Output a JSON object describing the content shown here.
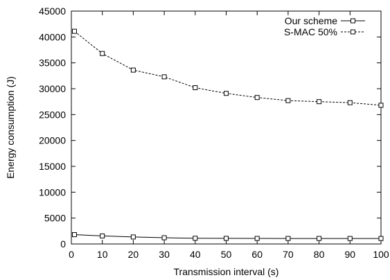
{
  "chart_data": {
    "type": "line",
    "xlabel": "Transmission interval (s)",
    "ylabel": "Energy consumption (J)",
    "xlim": [
      0,
      100
    ],
    "ylim": [
      0,
      45000
    ],
    "x_ticks": [
      "0",
      "10",
      "20",
      "30",
      "40",
      "50",
      "60",
      "70",
      "80",
      "90",
      "100"
    ],
    "y_ticks": [
      "0",
      "5000",
      "10000",
      "15000",
      "20000",
      "25000",
      "30000",
      "35000",
      "40000",
      "45000"
    ],
    "grid": false,
    "legend_position": "top-right",
    "series": [
      {
        "name": "Our scheme",
        "line_style": "solid",
        "marker": "square",
        "x": [
          1,
          10,
          20,
          30,
          40,
          50,
          60,
          70,
          80,
          90,
          100
        ],
        "y": [
          1800,
          1550,
          1350,
          1200,
          1100,
          1080,
          1070,
          1060,
          1060,
          1060,
          1060
        ]
      },
      {
        "name": "S-MAC 50%",
        "line_style": "dashed",
        "marker": "square",
        "x": [
          1,
          10,
          20,
          30,
          40,
          50,
          60,
          70,
          80,
          90,
          100
        ],
        "y": [
          41100,
          36800,
          33600,
          32300,
          30200,
          29100,
          28300,
          27700,
          27500,
          27300,
          26800
        ]
      }
    ]
  }
}
